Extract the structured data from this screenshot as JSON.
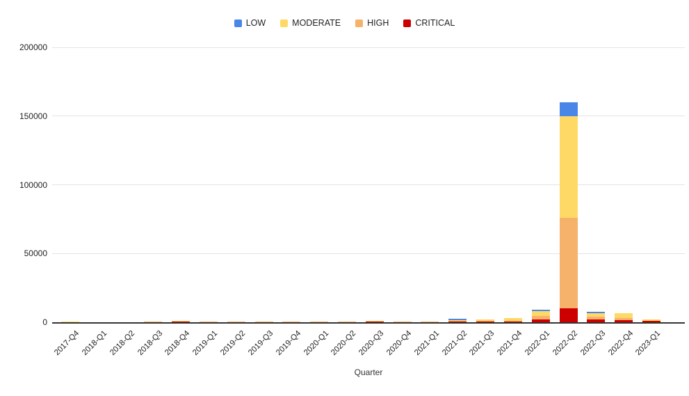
{
  "chart_data": {
    "type": "bar",
    "stacked": true,
    "title": "",
    "xlabel": "Quarter",
    "ylabel": "",
    "ylim": [
      0,
      200000
    ],
    "yticks": [
      0,
      50000,
      100000,
      150000,
      200000
    ],
    "grid": true,
    "legend_position": "top",
    "stack_order_bottom_to_top": [
      "CRITICAL",
      "HIGH",
      "MODERATE",
      "LOW"
    ],
    "categories": [
      "2017-Q4",
      "2018-Q1",
      "2018-Q2",
      "2018-Q3",
      "2018-Q4",
      "2019-Q1",
      "2019-Q2",
      "2019-Q3",
      "2019-Q4",
      "2020-Q1",
      "2020-Q2",
      "2020-Q3",
      "2020-Q4",
      "2021-Q1",
      "2021-Q2",
      "2021-Q3",
      "2021-Q4",
      "2022-Q1",
      "2022-Q2",
      "2022-Q3",
      "2022-Q4",
      "2023-Q1"
    ],
    "series": [
      {
        "name": "LOW",
        "color": "#4a86e8",
        "values": [
          0,
          0,
          0,
          0,
          0,
          0,
          0,
          0,
          0,
          0,
          0,
          0,
          0,
          0,
          1300,
          0,
          0,
          1000,
          10000,
          1000,
          0,
          0
        ]
      },
      {
        "name": "MODERATE",
        "color": "#ffd966",
        "values": [
          200,
          0,
          0,
          0,
          400,
          0,
          0,
          0,
          0,
          0,
          0,
          600,
          0,
          0,
          300,
          900,
          1800,
          3500,
          74000,
          2600,
          3300,
          1100
        ]
      },
      {
        "name": "HIGH",
        "color": "#f6b26b",
        "values": [
          200,
          0,
          0,
          400,
          100,
          400,
          400,
          350,
          400,
          400,
          500,
          200,
          400,
          500,
          500,
          600,
          700,
          2500,
          66000,
          1700,
          1400,
          300
        ]
      },
      {
        "name": "CRITICAL",
        "color": "#cc0000",
        "values": [
          0,
          0,
          0,
          0,
          600,
          0,
          0,
          0,
          0,
          0,
          0,
          400,
          0,
          0,
          700,
          500,
          500,
          2200,
          10000,
          2200,
          1700,
          800
        ]
      }
    ],
    "colors": {
      "low": "#4a86e8",
      "moderate": "#ffd966",
      "high": "#f6b26b",
      "critical": "#cc0000",
      "gridline": "#e3e3e3",
      "axis_line": "#333333",
      "text": "#1f1f1f"
    }
  }
}
